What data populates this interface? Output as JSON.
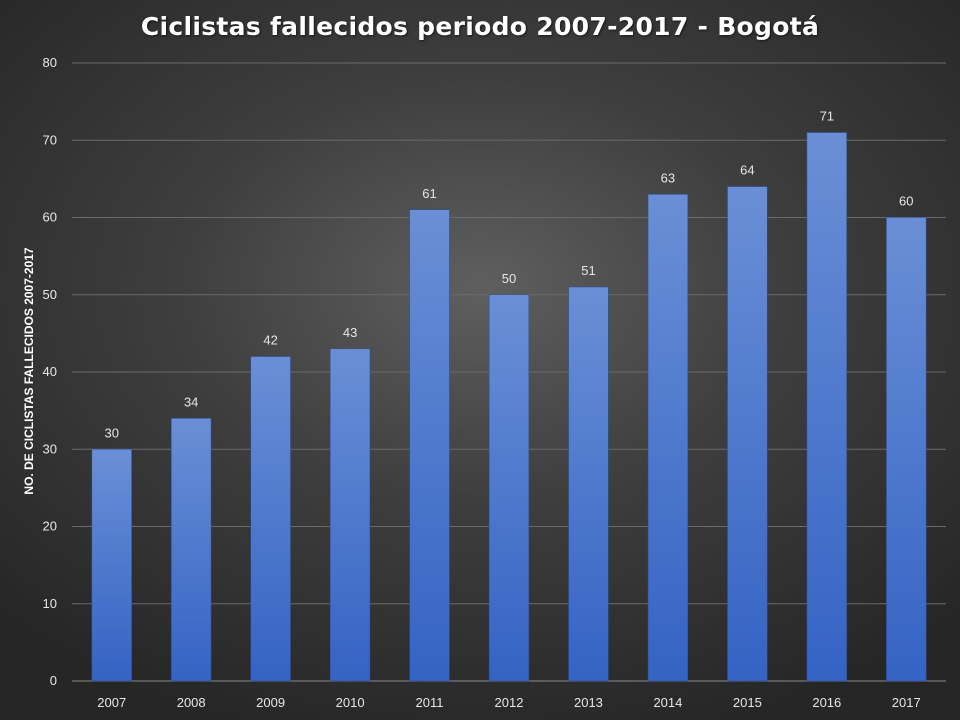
{
  "chart_data": {
    "type": "bar",
    "title": "Ciclistas fallecidos periodo 2007-2017  - Bogotá",
    "xlabel": "",
    "ylabel": "NO. DE CICLISTAS FALLECIDOS 2007-2017",
    "categories": [
      "2007",
      "2008",
      "2009",
      "2010",
      "2011",
      "2012",
      "2013",
      "2014",
      "2015",
      "2016",
      "2017"
    ],
    "values": [
      30,
      34,
      42,
      43,
      61,
      50,
      51,
      63,
      64,
      71,
      60
    ],
    "ylim": [
      0,
      80
    ],
    "yticks": [
      0,
      10,
      20,
      30,
      40,
      50,
      60,
      70,
      80
    ],
    "grid": true,
    "legend": "none",
    "bar_color_top": "#6a8fd6",
    "bar_color_bottom": "#3563c4",
    "background_color": "#3a3a3a"
  }
}
